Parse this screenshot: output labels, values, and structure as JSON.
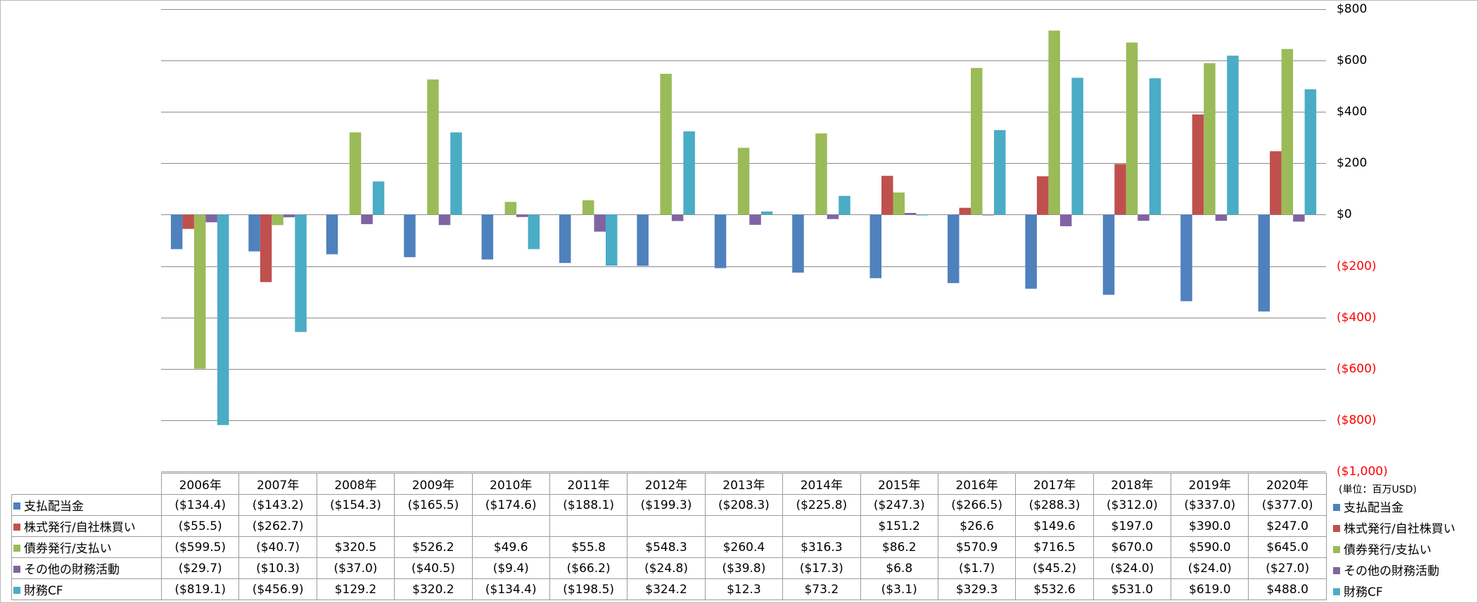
{
  "chart_data": {
    "type": "bar",
    "categories": [
      "2006年",
      "2007年",
      "2008年",
      "2009年",
      "2010年",
      "2011年",
      "2012年",
      "2013年",
      "2014年",
      "2015年",
      "2016年",
      "2017年",
      "2018年",
      "2019年",
      "2020年"
    ],
    "series": [
      {
        "name": "支払配当金",
        "color": "#4f81bd",
        "values": [
          -134.4,
          -143.2,
          -154.3,
          -165.5,
          -174.6,
          -188.1,
          -199.3,
          -208.3,
          -225.8,
          -247.3,
          -266.5,
          -288.3,
          -312.0,
          -337.0,
          -377.0
        ],
        "labels": [
          "($134.4)",
          "($143.2)",
          "($154.3)",
          "($165.5)",
          "($174.6)",
          "($188.1)",
          "($199.3)",
          "($208.3)",
          "($225.8)",
          "($247.3)",
          "($266.5)",
          "($288.3)",
          "($312.0)",
          "($337.0)",
          "($377.0)"
        ]
      },
      {
        "name": "株式発行/自社株買い",
        "color": "#c0504d",
        "values": [
          -55.5,
          -262.7,
          null,
          null,
          null,
          null,
          null,
          null,
          null,
          151.2,
          26.6,
          149.6,
          197.0,
          390.0,
          247.0
        ],
        "labels": [
          "($55.5)",
          "($262.7)",
          "",
          "",
          "",
          "",
          "",
          "",
          "",
          "$151.2",
          "$26.6",
          "$149.6",
          "$197.0",
          "$390.0",
          "$247.0"
        ]
      },
      {
        "name": "債券発行/支払い",
        "color": "#9bbb59",
        "values": [
          -599.5,
          -40.7,
          320.5,
          526.2,
          49.6,
          55.8,
          548.3,
          260.4,
          316.3,
          86.2,
          570.9,
          716.5,
          670.0,
          590.0,
          645.0
        ],
        "labels": [
          "($599.5)",
          "($40.7)",
          "$320.5",
          "$526.2",
          "$49.6",
          "$55.8",
          "$548.3",
          "$260.4",
          "$316.3",
          "$86.2",
          "$570.9",
          "$716.5",
          "$670.0",
          "$590.0",
          "$645.0"
        ]
      },
      {
        "name": "その他の財務活動",
        "color": "#8064a2",
        "values": [
          -29.7,
          -10.3,
          -37.0,
          -40.5,
          -9.4,
          -66.2,
          -24.8,
          -39.8,
          -17.3,
          6.8,
          -1.7,
          -45.2,
          -24.0,
          -24.0,
          -27.0
        ],
        "labels": [
          "($29.7)",
          "($10.3)",
          "($37.0)",
          "($40.5)",
          "($9.4)",
          "($66.2)",
          "($24.8)",
          "($39.8)",
          "($17.3)",
          "$6.8",
          "($1.7)",
          "($45.2)",
          "($24.0)",
          "($24.0)",
          "($27.0)"
        ]
      },
      {
        "name": "財務CF",
        "color": "#4bacc6",
        "values": [
          -819.1,
          -456.9,
          129.2,
          320.2,
          -134.4,
          -198.5,
          324.2,
          12.3,
          73.2,
          -3.1,
          329.3,
          532.6,
          531.0,
          619.0,
          488.0
        ],
        "labels": [
          "($819.1)",
          "($456.9)",
          "$129.2",
          "$320.2",
          "($134.4)",
          "($198.5)",
          "$324.2",
          "$12.3",
          "$73.2",
          "($3.1)",
          "$329.3",
          "$532.6",
          "$531.0",
          "$619.0",
          "$488.0"
        ]
      }
    ],
    "ylim": [
      -1000,
      800
    ],
    "yticks": [
      {
        "value": 800,
        "label": "$800"
      },
      {
        "value": 600,
        "label": "$600"
      },
      {
        "value": 400,
        "label": "$400"
      },
      {
        "value": 200,
        "label": "$200"
      },
      {
        "value": 0,
        "label": "$0"
      },
      {
        "value": -200,
        "label": "($200)"
      },
      {
        "value": -400,
        "label": "($400)"
      },
      {
        "value": -600,
        "label": "($600)"
      },
      {
        "value": -800,
        "label": "($800)"
      },
      {
        "value": -1000,
        "label": "($1,000)"
      }
    ],
    "negative_tick_color": "#ff0000",
    "units_label": "(単位：百万USD)",
    "grid": true,
    "legend": "right",
    "data_table": true
  }
}
